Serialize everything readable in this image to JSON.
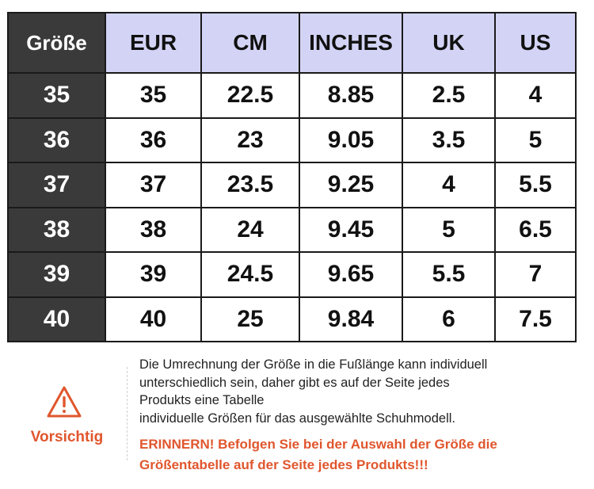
{
  "table": {
    "headers": [
      "Größe",
      "EUR",
      "CM",
      "INCHES",
      "UK",
      "US"
    ],
    "rows": [
      [
        "35",
        "35",
        "22.5",
        "8.85",
        "2.5",
        "4"
      ],
      [
        "36",
        "36",
        "23",
        "9.05",
        "3.5",
        "5"
      ],
      [
        "37",
        "37",
        "23.5",
        "9.25",
        "4",
        "5.5"
      ],
      [
        "38",
        "38",
        "24",
        "9.45",
        "5",
        "6.5"
      ],
      [
        "39",
        "39",
        "24.5",
        "9.65",
        "5.5",
        "7"
      ],
      [
        "40",
        "40",
        "25",
        "9.84",
        "6",
        "7.5"
      ]
    ]
  },
  "notice": {
    "icon": "warning-triangle-icon",
    "label": "Vorsichtig",
    "lines": [
      "Die Umrechnung der Größe in die Fußlänge kann individuell",
      "unterschiedlich sein, daher gibt es auf der Seite jedes",
      "Produkts eine Tabelle",
      "individuelle Größen für das ausgewählte Schuhmodell."
    ],
    "reminder_lines": [
      "ERINNERN! Befolgen Sie bei der Auswahl der Größe die",
      "Größentabelle auf der Seite jedes Produkts!!!"
    ]
  },
  "colors": {
    "header_bg": "#d3d4f5",
    "row_header_bg": "#3a3a3a",
    "warning": "#e0562d"
  }
}
